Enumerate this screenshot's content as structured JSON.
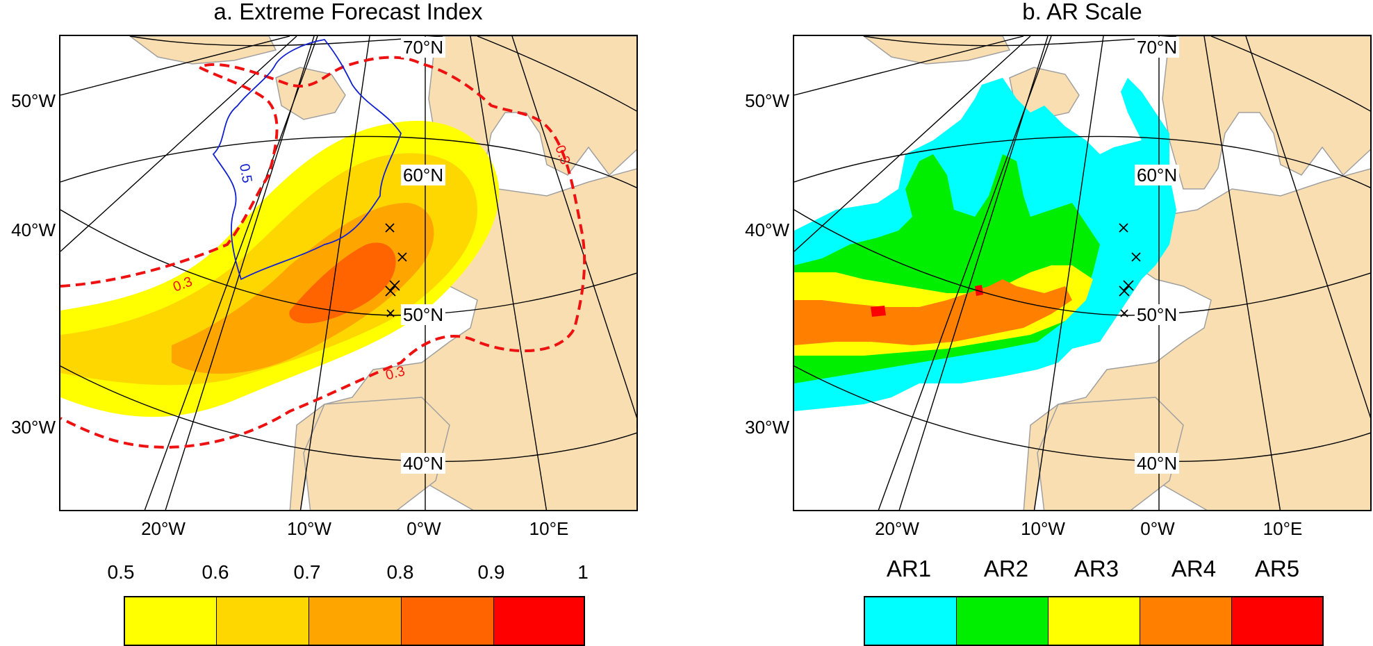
{
  "panels": {
    "a": {
      "title": "a. Extreme Forecast Index",
      "contour_labels": [
        "0.3",
        "0.3",
        "0.3",
        "0.5"
      ],
      "colorbar": {
        "ticks": [
          "0.5",
          "0.6",
          "0.7",
          "0.8",
          "0.9",
          "1"
        ],
        "colors": [
          "#ffff00",
          "#ffd700",
          "#ffa500",
          "#ff6400",
          "#ff0000"
        ]
      }
    },
    "b": {
      "title": "b. AR Scale",
      "colorbar": {
        "labels": [
          "AR1",
          "AR2",
          "AR3",
          "AR4",
          "AR5"
        ],
        "colors": [
          "#00ffff",
          "#00ee00",
          "#ffff00",
          "#ff8000",
          "#ff0000"
        ]
      }
    }
  },
  "axes": {
    "y_ticks": [
      "50°W",
      "40°W",
      "30°W"
    ],
    "x_ticks": [
      "20°W",
      "10°W",
      "0°W",
      "10°E"
    ],
    "lat_labels": [
      "70°N",
      "60°N",
      "50°N",
      "40°N"
    ]
  },
  "colors": {
    "land": "#f9deb1",
    "coast": "#a0a0a0",
    "grid": "#000000",
    "contour_red": "#ee1111",
    "contour_blue": "#1020d0"
  }
}
